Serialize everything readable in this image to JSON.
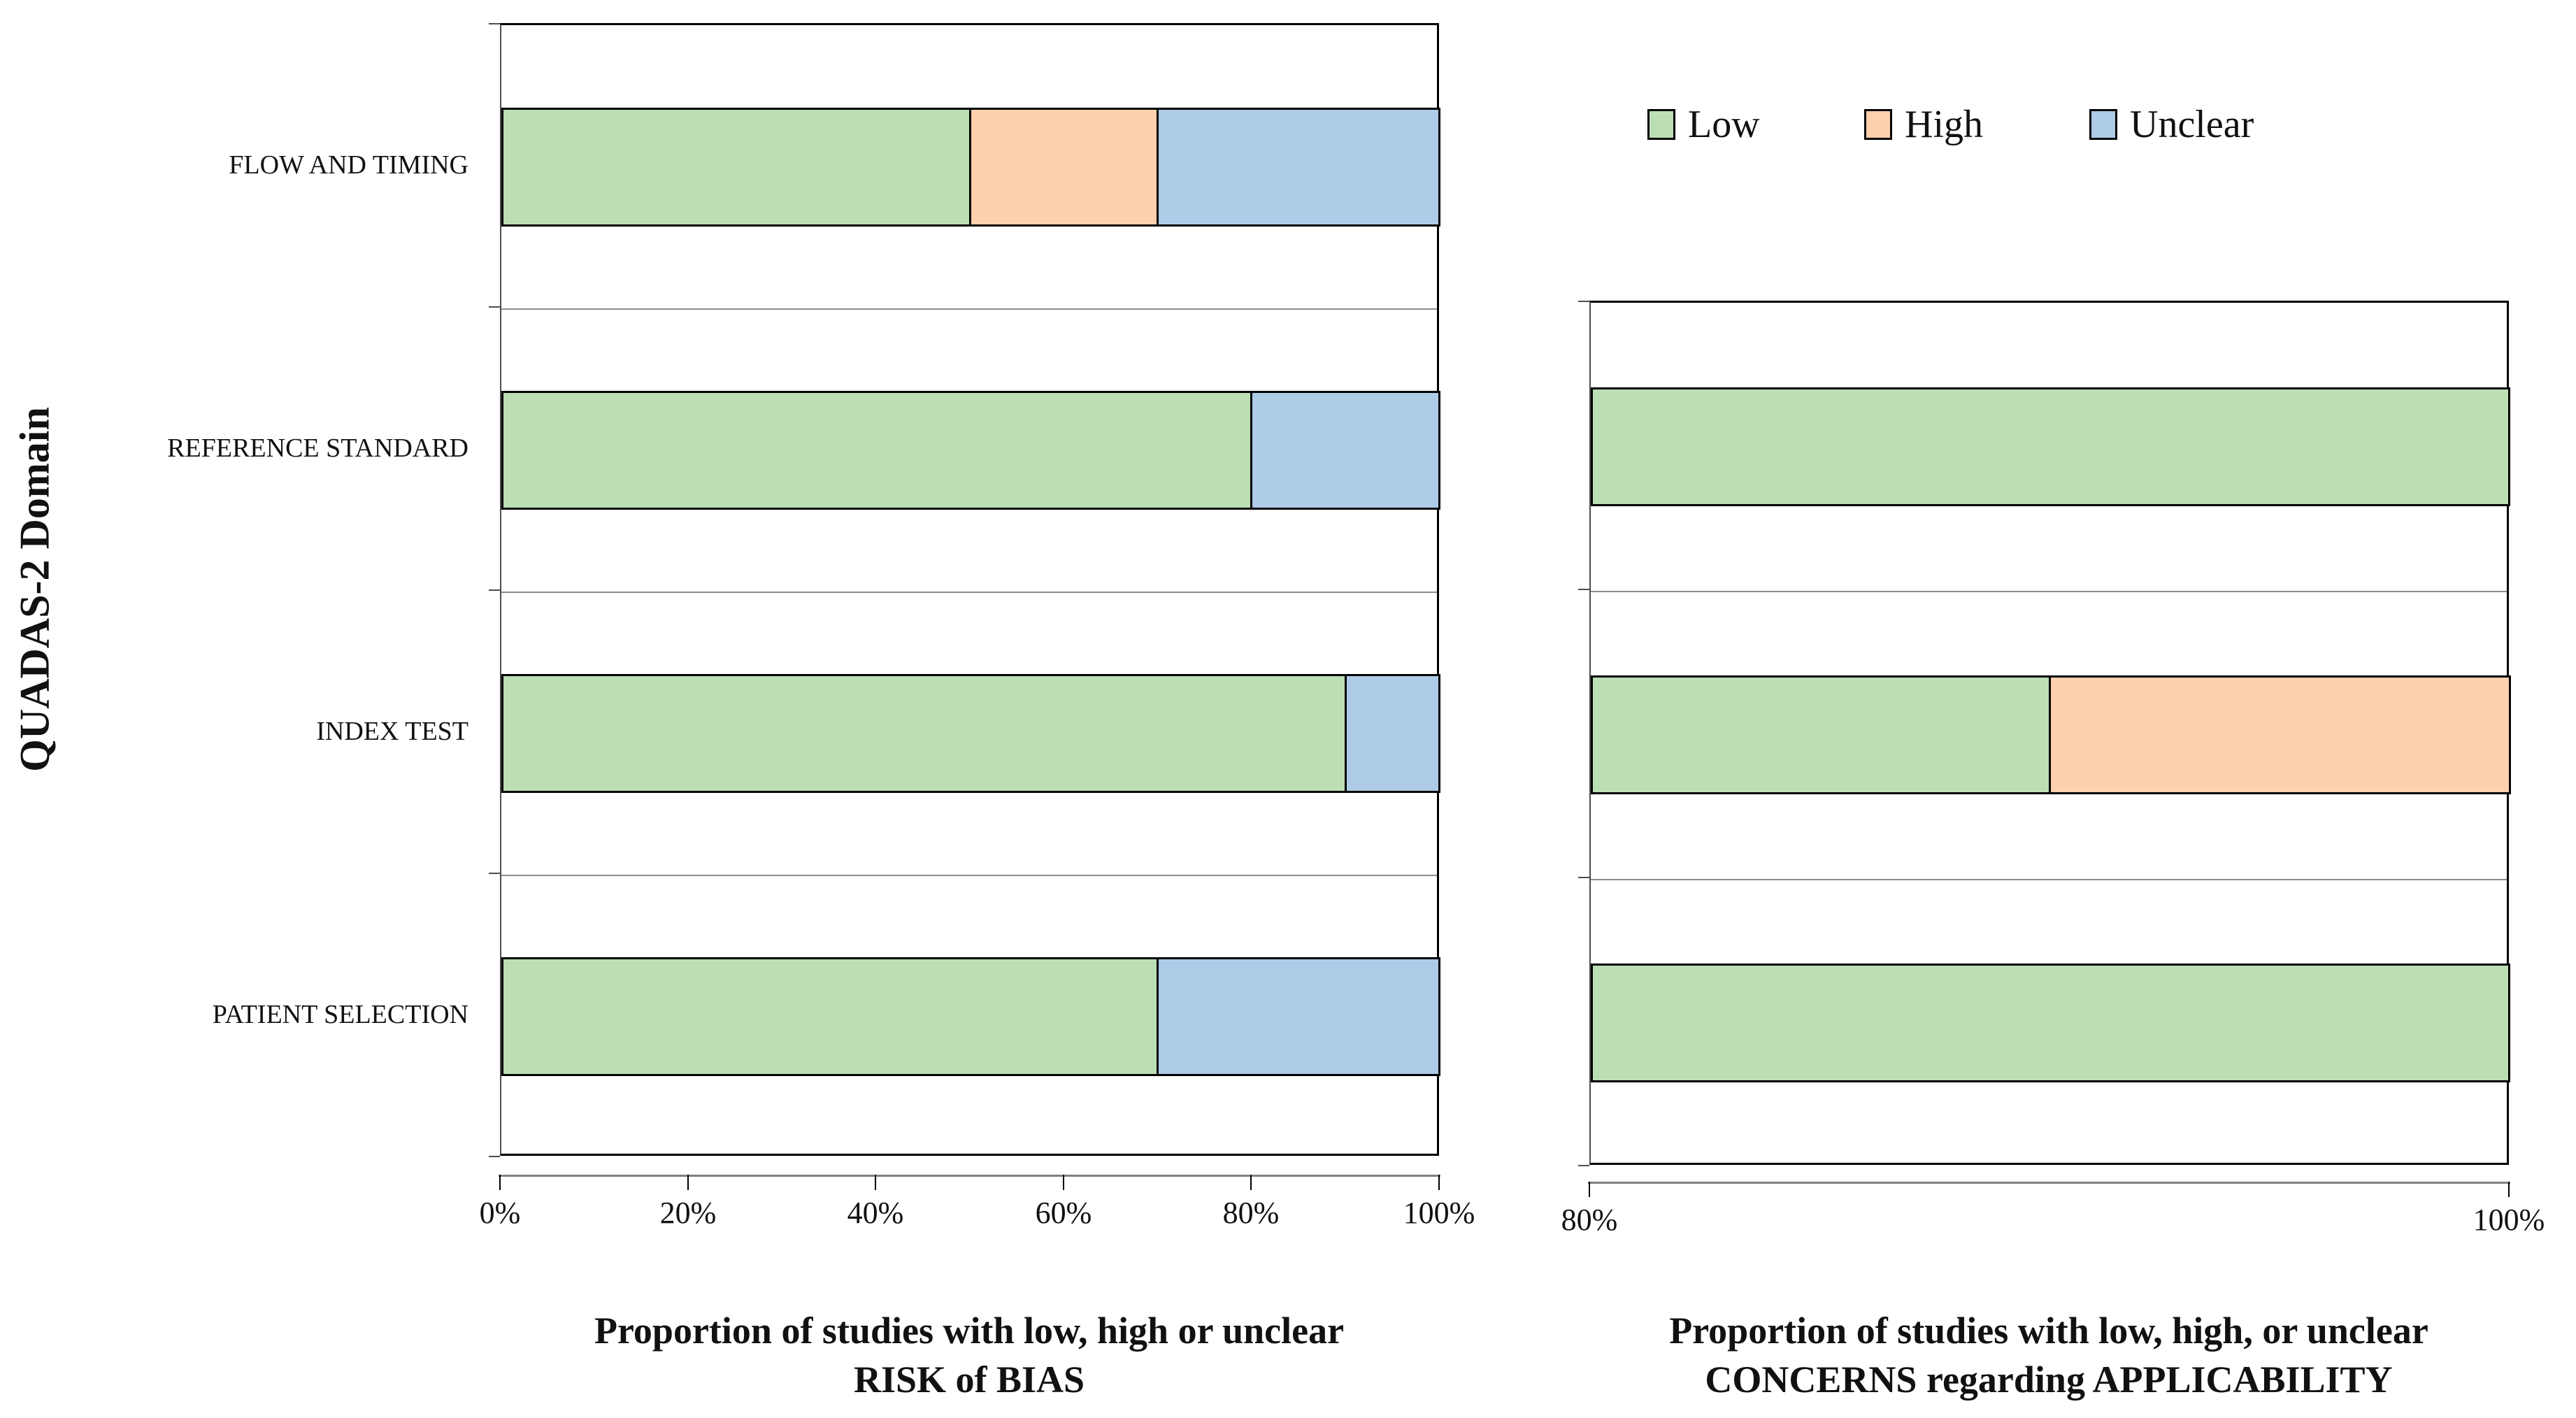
{
  "figure": {
    "y_axis_title": "QUADAS-2 Domain"
  },
  "legend": {
    "items": [
      {
        "label": "Low",
        "color": "#bcdeb4"
      },
      {
        "label": "High",
        "color": "#fdd0ae"
      },
      {
        "label": "Unclear",
        "color": "#aecbe8"
      }
    ]
  },
  "colors": {
    "low": "#bcdeb4",
    "high": "#fdd0ae",
    "unclear": "#aecbe8",
    "bar_border": "#000000",
    "gridline": "#8c8c8c",
    "axis_line": "#808080"
  },
  "chart_data": [
    {
      "id": "risk_of_bias",
      "type": "bar",
      "orientation": "horizontal",
      "stacked": true,
      "title_lines": [
        "Proportion of studies with low, high or unclear",
        "RISK of BIAS"
      ],
      "xlabel": "Proportion of studies with low, high or unclear RISK of BIAS",
      "ylabel": "QUADAS-2 Domain",
      "categories_top_to_bottom": [
        "FLOW AND TIMING",
        "REFERENCE STANDARD",
        "INDEX TEST",
        "PATIENT SELECTION"
      ],
      "series": [
        {
          "name": "Low",
          "color": "#bcdeb4",
          "values": [
            50,
            80,
            90,
            70
          ]
        },
        {
          "name": "High",
          "color": "#fdd0ae",
          "values": [
            20,
            0,
            0,
            0
          ]
        },
        {
          "name": "Unclear",
          "color": "#aecbe8",
          "values": [
            30,
            20,
            10,
            30
          ]
        }
      ],
      "xlim": [
        0,
        100
      ],
      "x_ticks": [
        0,
        20,
        40,
        60,
        80,
        100
      ],
      "x_tick_labels": [
        "0%",
        "20%",
        "40%",
        "60%",
        "80%",
        "100%"
      ],
      "grid": "category-boundaries",
      "legend_position": "top-right-of-figure"
    },
    {
      "id": "applicability",
      "type": "bar",
      "orientation": "horizontal",
      "stacked": true,
      "title_lines": [
        "Proportion of studies with low, high, or unclear",
        "CONCERNS regarding APPLICABILITY"
      ],
      "xlabel": "Proportion of studies with low, high, or unclear CONCERNS regarding APPLICABILITY",
      "categories_top_to_bottom": [
        "REFERENCE STANDARD",
        "INDEX TEST",
        "PATIENT SELECTION"
      ],
      "series": [
        {
          "name": "Low",
          "color": "#bcdeb4",
          "values": [
            100,
            90,
            100
          ]
        },
        {
          "name": "High",
          "color": "#fdd0ae",
          "values": [
            0,
            10,
            0
          ]
        },
        {
          "name": "Unclear",
          "color": "#aecbe8",
          "values": [
            0,
            0,
            0
          ]
        }
      ],
      "xlim": [
        80,
        100
      ],
      "x_ticks": [
        80,
        100
      ],
      "x_tick_labels": [
        "80%",
        "100%"
      ],
      "grid": "category-boundaries",
      "legend_position": "top-right-of-figure"
    }
  ]
}
